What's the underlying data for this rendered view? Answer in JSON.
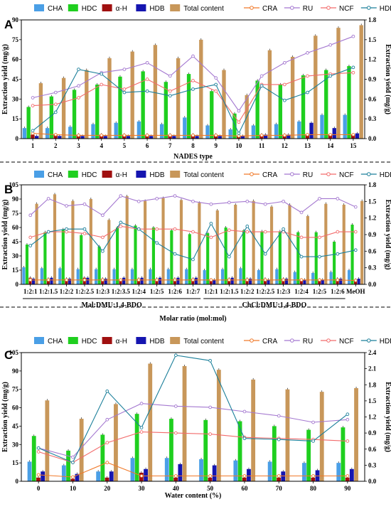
{
  "colors": {
    "CHA": "#4a9fe6",
    "HDC": "#1fcf1f",
    "a-H": "#a01010",
    "HDB": "#1515b0",
    "Total content": "#c8975a",
    "CRA": "#f07a2a",
    "RU": "#a478d0",
    "NCF": "#f26b6b",
    "HDD": "#1b7f9a"
  },
  "legend_bar": [
    {
      "key": "CHA",
      "label": "CHA"
    },
    {
      "key": "HDC",
      "label": "HDC"
    },
    {
      "key": "a-H",
      "label": "α-H"
    },
    {
      "key": "HDB",
      "label": "HDB"
    },
    {
      "key": "Total content",
      "label": "Total content"
    }
  ],
  "legend_line": [
    {
      "key": "CRA",
      "label": "CRA"
    },
    {
      "key": "RU",
      "label": "RU"
    },
    {
      "key": "NCF",
      "label": "NCF"
    },
    {
      "key": "HDD",
      "label": "HDD"
    }
  ],
  "chart_data": [
    {
      "panel": "A",
      "type": "bar",
      "xlabel": "NADES type",
      "ylabel": "Extraction yield (mg/g)",
      "y2label": "Extraction yield (mg/g)",
      "ylim": [
        0,
        90
      ],
      "y2lim": [
        0,
        1.8
      ],
      "yticks": [
        0,
        15,
        30,
        45,
        60,
        75,
        90
      ],
      "y2ticks": [
        "0.0",
        "0.3",
        "0.6",
        "0.9",
        "1.2",
        "1.5",
        "1.8"
      ],
      "categories": [
        "1",
        "2",
        "3",
        "4",
        "5",
        "6",
        "7",
        "8",
        "9",
        "10",
        "11",
        "12",
        "13",
        "14",
        "15"
      ],
      "bars": {
        "CHA": [
          8,
          8,
          9,
          11,
          12,
          13,
          11,
          16,
          10,
          7,
          10,
          11,
          13,
          18,
          18
        ],
        "HDC": [
          24,
          32,
          37,
          41,
          47,
          51,
          43,
          49,
          36,
          19,
          44,
          41,
          48,
          52,
          55
        ],
        "a-H": [
          3,
          3,
          3,
          3,
          3,
          3,
          3,
          3,
          3,
          2,
          3,
          3,
          3,
          3,
          3
        ],
        "HDB": [
          2,
          2,
          2,
          2,
          2,
          2,
          2,
          2,
          2,
          2,
          3,
          3,
          12,
          8,
          4
        ],
        "Total content": [
          42,
          46,
          52,
          61,
          66,
          71,
          61,
          75,
          52,
          33,
          67,
          62,
          78,
          84,
          86
        ]
      },
      "lines": {
        "CRA": [
          0.08,
          0.06,
          0.05,
          0.05,
          0.05,
          0.05,
          0.05,
          0.05,
          0.05,
          0.04,
          0.05,
          0.05,
          0.06,
          0.06,
          0.06
        ],
        "RU": [
          0.62,
          0.7,
          0.8,
          1.0,
          1.05,
          1.15,
          0.95,
          1.25,
          0.92,
          0.42,
          0.95,
          1.15,
          1.3,
          1.42,
          1.55
        ],
        "NCF": [
          0.5,
          0.52,
          0.62,
          0.82,
          0.75,
          0.9,
          0.72,
          0.88,
          0.72,
          0.25,
          0.82,
          0.82,
          0.95,
          0.98,
          1.0
        ],
        "HDD": [
          0.12,
          0.4,
          1.05,
          0.98,
          0.7,
          0.72,
          0.65,
          0.75,
          0.82,
          0.08,
          0.8,
          0.58,
          0.7,
          0.95,
          1.08
        ]
      }
    },
    {
      "panel": "B",
      "type": "bar",
      "xlabel": "Molar ratio (mol:mol)",
      "ylabel": "Extraction yield (mg/g)",
      "y2label": "Extraction yield (mg/g)",
      "ylim": [
        0,
        105
      ],
      "y2lim": [
        0,
        1.8
      ],
      "yticks": [
        0,
        15,
        30,
        45,
        60,
        75,
        90,
        105
      ],
      "y2ticks": [
        "0.0",
        "0.3",
        "0.6",
        "0.9",
        "1.2",
        "1.5",
        "1.8"
      ],
      "categories": [
        "1:2:1",
        "1:2:1.5",
        "1:2:2",
        "1:2:2.5",
        "1:2:3",
        "1:2:3.5",
        "1:2:4",
        "1:2:5",
        "1:2:6",
        "1:2:7",
        "1:2:1",
        "1:2:1.5",
        "1:2:2",
        "1:2:2.5",
        "1:2:3",
        "1:2:4",
        "1:2:5",
        "1:2:6",
        "MeOH"
      ],
      "groups": [
        {
          "label": "Mal:DMU:1,4-BDO",
          "from": 0,
          "to": 9
        },
        {
          "label": "ChCl:DMU:1,4-BDO",
          "from": 10,
          "to": 17
        }
      ],
      "bars": {
        "CHA": [
          18,
          17,
          17,
          16,
          16,
          16,
          16,
          16,
          16,
          16,
          15,
          16,
          17,
          15,
          16,
          13,
          12,
          13,
          15
        ],
        "HDC": [
          42,
          55,
          58,
          52,
          40,
          60,
          62,
          60,
          57,
          53,
          54,
          60,
          57,
          56,
          56,
          55,
          55,
          45,
          63
        ],
        "a-H": [
          7,
          6,
          6,
          7,
          6,
          5,
          6,
          6,
          6,
          6,
          5,
          6,
          6,
          6,
          6,
          5,
          5,
          6,
          5
        ],
        "HDB": [
          6,
          7,
          6,
          7,
          6,
          7,
          7,
          7,
          7,
          7,
          5,
          7,
          6,
          5,
          6,
          5,
          5,
          6,
          6
        ],
        "Total content": [
          85,
          95,
          88,
          90,
          68,
          93,
          88,
          91,
          89,
          86,
          78,
          84,
          88,
          82,
          84,
          72,
          85,
          84,
          88
        ]
      },
      "lines": {
        "CRA": [
          0.08,
          0.08,
          0.08,
          0.08,
          0.08,
          0.08,
          0.08,
          0.08,
          0.08,
          0.08,
          0.08,
          0.08,
          0.08,
          0.08,
          0.08,
          0.08,
          0.08,
          0.08,
          0.07
        ],
        "RU": [
          1.25,
          1.55,
          1.42,
          1.45,
          1.25,
          1.6,
          1.5,
          1.55,
          1.6,
          1.5,
          1.45,
          1.48,
          1.5,
          1.45,
          1.5,
          1.3,
          1.55,
          1.55,
          1.4
        ],
        "NCF": [
          0.85,
          0.95,
          0.95,
          0.92,
          0.85,
          1.05,
          1.0,
          1.0,
          1.0,
          0.95,
          0.85,
          0.98,
          0.95,
          0.95,
          0.95,
          0.85,
          0.85,
          0.95,
          0.95
        ],
        "HDD": [
          0.7,
          0.95,
          1.0,
          1.0,
          0.6,
          1.12,
          1.0,
          0.75,
          0.55,
          0.45,
          1.1,
          0.5,
          1.05,
          0.55,
          1.0,
          0.5,
          0.5,
          0.55,
          0.62
        ]
      }
    },
    {
      "panel": "C",
      "type": "bar",
      "xlabel": "Water content (%)",
      "ylabel": "Extraction yield (mg/g)",
      "y2label": "Extraction yield (mg/g)",
      "ylim": [
        0,
        105
      ],
      "y2lim": [
        0,
        2.4
      ],
      "yticks": [
        0,
        15,
        30,
        45,
        60,
        75,
        90,
        105
      ],
      "y2ticks": [
        "0.0",
        "0.3",
        "0.6",
        "0.9",
        "1.2",
        "1.5",
        "1.8",
        "2.1",
        "2.4"
      ],
      "categories": [
        "0",
        "10",
        "20",
        "30",
        "40",
        "50",
        "60",
        "70",
        "80",
        "90"
      ],
      "bars": {
        "CHA": [
          16,
          13,
          8,
          19,
          19,
          18,
          17,
          16,
          15,
          15
        ],
        "HDC": [
          37,
          25,
          38,
          55,
          51,
          50,
          49,
          45,
          42,
          44
        ],
        "a-H": [
          3,
          2,
          3,
          7,
          3,
          3,
          3,
          3,
          3,
          3
        ],
        "HDB": [
          8,
          6,
          8,
          10,
          14,
          13,
          10,
          8,
          9,
          10
        ],
        "Total content": [
          66,
          51,
          63,
          96,
          94,
          91,
          83,
          75,
          73,
          76
        ]
      },
      "lines": {
        "CRA": [
          0.12,
          0.08,
          0.35,
          0.1,
          0.1,
          0.1,
          0.1,
          0.1,
          0.1,
          0.1
        ],
        "RU": [
          0.62,
          0.45,
          1.15,
          1.45,
          1.4,
          1.38,
          1.3,
          1.22,
          1.1,
          1.15
        ],
        "NCF": [
          0.55,
          0.35,
          0.72,
          0.92,
          0.9,
          0.88,
          0.82,
          0.8,
          0.78,
          0.75
        ],
        "HDD": [
          0.62,
          0.35,
          1.68,
          1.0,
          2.35,
          2.25,
          0.8,
          0.78,
          0.75,
          1.25
        ]
      }
    }
  ]
}
